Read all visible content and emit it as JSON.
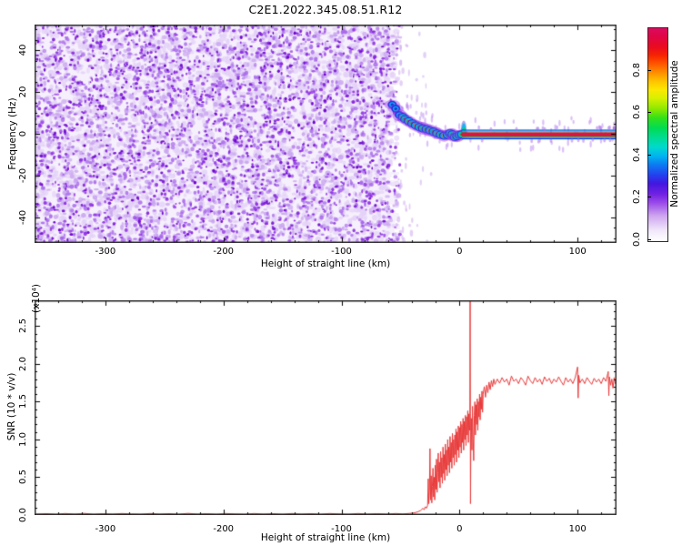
{
  "title": "C2E1.2022.345.08.51.R12",
  "chart_data": [
    {
      "type": "heatmap",
      "title": "C2E1.2022.345.08.51.R12",
      "xlabel": "Height of straight line (km)",
      "ylabel": "Frequency (Hz)",
      "xlim": [
        -360,
        133
      ],
      "ylim": [
        -52.4,
        52.4
      ],
      "xticks": [
        -300,
        -200,
        -100,
        0,
        100
      ],
      "x_minor_step": 20,
      "yticks": [
        -40,
        -20,
        0,
        20,
        40
      ],
      "y_minor_step": 5,
      "ytick_decimals": 0,
      "background": "#ffffff",
      "noise_region": {
        "x_min": -360,
        "x_max": -54,
        "freq_min": -52.4,
        "freq_max": 52.4,
        "palette": [
          "#f6f0fc",
          "#e3d0f7",
          "#c9a4f0",
          "#a767ea",
          "#8824e0",
          "#6f06cf"
        ]
      },
      "signal_trace": [
        [
          -57,
          14
        ],
        [
          -54,
          12
        ],
        [
          -51,
          9
        ],
        [
          -48,
          8
        ],
        [
          -46,
          7
        ],
        [
          -43,
          6
        ],
        [
          -40,
          5
        ],
        [
          -37,
          4
        ],
        [
          -34,
          3.2
        ],
        [
          -31,
          2.6
        ],
        [
          -28,
          2.2
        ],
        [
          -25,
          1.6
        ],
        [
          -22,
          1
        ],
        [
          -19,
          0.2
        ],
        [
          -16,
          -0.4
        ],
        [
          -13,
          -0.9
        ],
        [
          -10,
          -0.6
        ],
        [
          -8,
          0.3
        ],
        [
          -6,
          -0.3
        ],
        [
          -4,
          -1.6
        ],
        [
          -2,
          -1.2
        ],
        [
          0,
          -0.5
        ],
        [
          2,
          -0.3
        ]
      ],
      "flat_line": {
        "x_start": 2,
        "x_end": 133,
        "freq": -0.3
      },
      "spur": {
        "x": 3.6,
        "freq_top": 5
      },
      "trace_colors": {
        "core": "#dc1440",
        "yellow": "#ffdf00",
        "green": "#00d850",
        "cyan": "#00b4f0",
        "blue": "#2428dc",
        "halo": "#9a3ce8"
      },
      "colorbar": {
        "label": "Normalized spectral amplitude",
        "ticks": [
          0.0,
          0.2,
          0.4,
          0.6,
          0.8
        ],
        "tick_decimals": 1,
        "range": [
          0,
          1
        ],
        "stops": [
          [
            "#ffffff",
            0
          ],
          [
            "#f1e8fa",
            5
          ],
          [
            "#cda4ef",
            12
          ],
          [
            "#9a4ae8",
            18
          ],
          [
            "#7222e2",
            22
          ],
          [
            "#4316e0",
            27
          ],
          [
            "#2440ee",
            31
          ],
          [
            "#0c7cf2",
            36
          ],
          [
            "#00b4f0",
            40
          ],
          [
            "#00d8d0",
            44
          ],
          [
            "#00dc9a",
            48
          ],
          [
            "#00dc55",
            53
          ],
          [
            "#35e018",
            58
          ],
          [
            "#8ae800",
            62
          ],
          [
            "#d6f000",
            67
          ],
          [
            "#fce800",
            71
          ],
          [
            "#ffc400",
            75
          ],
          [
            "#ff9000",
            79
          ],
          [
            "#ff5a00",
            83
          ],
          [
            "#f72600",
            87
          ],
          [
            "#ea0b1e",
            91
          ],
          [
            "#e00545",
            96
          ],
          [
            "#dc0a5e",
            100
          ]
        ]
      }
    },
    {
      "type": "line",
      "xlabel": "Height of straight line (km)",
      "ylabel": "SNR (10 * v/v)",
      "scale_label": "(x10⁴)",
      "xlim": [
        -360,
        133
      ],
      "ylim": [
        0,
        2.843
      ],
      "xticks": [
        -300,
        -200,
        -100,
        0,
        100
      ],
      "x_minor_step": 20,
      "yticks": [
        0,
        0.5,
        1,
        1.5,
        2,
        2.5
      ],
      "y_minor_step": 0.1,
      "ytick_decimals": 1,
      "line_color": "#e93b3b",
      "points": [
        [
          -359,
          0.012
        ],
        [
          -350,
          0.018
        ],
        [
          -342,
          0.01
        ],
        [
          -334,
          0.02
        ],
        [
          -326,
          0.012
        ],
        [
          -318,
          0.022
        ],
        [
          -310,
          0.01
        ],
        [
          -302,
          0.018
        ],
        [
          -294,
          0.012
        ],
        [
          -286,
          0.02
        ],
        [
          -278,
          0.014
        ],
        [
          -270,
          0.01
        ],
        [
          -262,
          0.02
        ],
        [
          -254,
          0.012
        ],
        [
          -246,
          0.018
        ],
        [
          -238,
          0.01
        ],
        [
          -230,
          0.022
        ],
        [
          -222,
          0.012
        ],
        [
          -214,
          0.018
        ],
        [
          -206,
          0.01
        ],
        [
          -198,
          0.02
        ],
        [
          -190,
          0.014
        ],
        [
          -182,
          0.01
        ],
        [
          -174,
          0.02
        ],
        [
          -166,
          0.012
        ],
        [
          -158,
          0.018
        ],
        [
          -150,
          0.01
        ],
        [
          -142,
          0.02
        ],
        [
          -134,
          0.012
        ],
        [
          -126,
          0.018
        ],
        [
          -118,
          0.01
        ],
        [
          -110,
          0.02
        ],
        [
          -102,
          0.014
        ],
        [
          -94,
          0.01
        ],
        [
          -86,
          0.02
        ],
        [
          -78,
          0.012
        ],
        [
          -70,
          0.018
        ],
        [
          -62,
          0.012
        ],
        [
          -54,
          0.02
        ],
        [
          -48,
          0.014
        ],
        [
          -42,
          0.022
        ],
        [
          -38,
          0.03
        ],
        [
          -35,
          0.045
        ],
        [
          -33,
          0.06
        ],
        [
          -31,
          0.09
        ],
        [
          -30,
          0.07
        ],
        [
          -29,
          0.11
        ],
        [
          -28,
          0.09
        ],
        [
          -27,
          0.13
        ],
        [
          -26.5,
          0.48
        ],
        [
          -26,
          0.15
        ],
        [
          -25.5,
          0.32
        ],
        [
          -25,
          0.88
        ],
        [
          -24.5,
          0.2
        ],
        [
          -24,
          0.52
        ],
        [
          -23.5,
          0.16
        ],
        [
          -23,
          0.38
        ],
        [
          -22.5,
          0.62
        ],
        [
          -22,
          0.24
        ],
        [
          -21.5,
          0.5
        ],
        [
          -21,
          0.2
        ],
        [
          -20.5,
          0.66
        ],
        [
          -20,
          0.34
        ],
        [
          -19.5,
          0.74
        ],
        [
          -19,
          0.3
        ],
        [
          -18.5,
          0.56
        ],
        [
          -18,
          0.82
        ],
        [
          -17.5,
          0.44
        ],
        [
          -17,
          0.7
        ],
        [
          -16.5,
          0.36
        ],
        [
          -16,
          0.84
        ],
        [
          -15.5,
          0.5
        ],
        [
          -15,
          0.76
        ],
        [
          -14.5,
          0.42
        ],
        [
          -14,
          0.9
        ],
        [
          -13.5,
          0.55
        ],
        [
          -13,
          0.8
        ],
        [
          -12.5,
          0.46
        ],
        [
          -12,
          0.94
        ],
        [
          -11.5,
          0.6
        ],
        [
          -11,
          0.86
        ],
        [
          -10.5,
          0.52
        ],
        [
          -10,
          1.0
        ],
        [
          -9.5,
          0.66
        ],
        [
          -9,
          0.9
        ],
        [
          -8.5,
          0.56
        ],
        [
          -8,
          1.04
        ],
        [
          -7.5,
          0.7
        ],
        [
          -7,
          0.96
        ],
        [
          -6.5,
          0.62
        ],
        [
          -6,
          1.08
        ],
        [
          -5.5,
          0.76
        ],
        [
          -5,
          1.0
        ],
        [
          -4.5,
          0.66
        ],
        [
          -4,
          1.06
        ],
        [
          -3.5,
          0.8
        ],
        [
          -3,
          1.14
        ],
        [
          -2.5,
          0.7
        ],
        [
          -2,
          1.1
        ],
        [
          -1.5,
          0.86
        ],
        [
          -1,
          1.18
        ],
        [
          -0.5,
          0.76
        ],
        [
          0,
          1.16
        ],
        [
          0.5,
          0.9
        ],
        [
          1,
          1.24
        ],
        [
          1.5,
          0.82
        ],
        [
          2,
          1.2
        ],
        [
          2.5,
          0.96
        ],
        [
          3,
          1.28
        ],
        [
          3.5,
          0.86
        ],
        [
          4,
          1.24
        ],
        [
          4.5,
          1.0
        ],
        [
          5,
          1.32
        ],
        [
          5.5,
          0.92
        ],
        [
          6,
          1.3
        ],
        [
          6.5,
          1.06
        ],
        [
          7,
          1.38
        ],
        [
          7.5,
          0.96
        ],
        [
          8,
          1.34
        ],
        [
          8.5,
          1.12
        ],
        [
          8.8,
          1.2
        ],
        [
          9,
          2.84
        ],
        [
          9.3,
          0.15
        ],
        [
          9.6,
          1.05
        ],
        [
          10,
          1.28
        ],
        [
          10.5,
          0.86
        ],
        [
          11,
          1.44
        ],
        [
          11.5,
          1.0
        ],
        [
          12,
          0.72
        ],
        [
          12.5,
          1.32
        ],
        [
          13,
          1.5
        ],
        [
          13.5,
          1.06
        ],
        [
          14,
          1.46
        ],
        [
          14.5,
          1.2
        ],
        [
          15,
          1.54
        ],
        [
          15.5,
          1.12
        ],
        [
          16,
          1.5
        ],
        [
          16.5,
          1.3
        ],
        [
          17,
          1.6
        ],
        [
          17.5,
          1.26
        ],
        [
          18,
          1.56
        ],
        [
          18.5,
          1.4
        ],
        [
          19,
          1.64
        ],
        [
          19.5,
          1.36
        ],
        [
          20,
          1.6
        ],
        [
          21,
          1.7
        ],
        [
          22,
          1.56
        ],
        [
          23,
          1.72
        ],
        [
          24,
          1.62
        ],
        [
          25,
          1.76
        ],
        [
          26,
          1.66
        ],
        [
          27,
          1.78
        ],
        [
          28,
          1.7
        ],
        [
          29,
          1.8
        ],
        [
          30,
          1.73
        ],
        [
          32,
          1.8
        ],
        [
          34,
          1.745
        ],
        [
          36,
          1.82
        ],
        [
          38,
          1.76
        ],
        [
          40,
          1.8
        ],
        [
          42,
          1.72
        ],
        [
          44,
          1.84
        ],
        [
          46,
          1.77
        ],
        [
          48,
          1.8
        ],
        [
          50,
          1.74
        ],
        [
          52,
          1.82
        ],
        [
          54,
          1.78
        ],
        [
          56,
          1.72
        ],
        [
          58,
          1.84
        ],
        [
          60,
          1.78
        ],
        [
          62,
          1.74
        ],
        [
          64,
          1.82
        ],
        [
          66,
          1.76
        ],
        [
          68,
          1.8
        ],
        [
          70,
          1.73
        ],
        [
          72,
          1.83
        ],
        [
          74,
          1.77
        ],
        [
          76,
          1.81
        ],
        [
          78,
          1.74
        ],
        [
          80,
          1.8
        ],
        [
          82,
          1.76
        ],
        [
          84,
          1.83
        ],
        [
          86,
          1.77
        ],
        [
          88,
          1.72
        ],
        [
          90,
          1.82
        ],
        [
          92,
          1.76
        ],
        [
          94,
          1.8
        ],
        [
          96,
          1.74
        ],
        [
          98,
          1.82
        ],
        [
          100,
          1.96
        ],
        [
          100.5,
          1.55
        ],
        [
          101,
          1.85
        ],
        [
          102,
          1.75
        ],
        [
          104,
          1.8
        ],
        [
          106,
          1.74
        ],
        [
          108,
          1.82
        ],
        [
          110,
          1.77
        ],
        [
          112,
          1.73
        ],
        [
          114,
          1.81
        ],
        [
          116,
          1.76
        ],
        [
          118,
          1.8
        ],
        [
          120,
          1.74
        ],
        [
          122,
          1.82
        ],
        [
          124,
          1.77
        ],
        [
          126,
          1.9
        ],
        [
          126.5,
          1.58
        ],
        [
          127,
          1.83
        ],
        [
          128,
          1.72
        ],
        [
          129,
          1.8
        ],
        [
          130,
          1.68
        ],
        [
          131,
          1.82
        ],
        [
          132,
          1.74
        ],
        [
          133,
          1.78
        ]
      ]
    }
  ]
}
